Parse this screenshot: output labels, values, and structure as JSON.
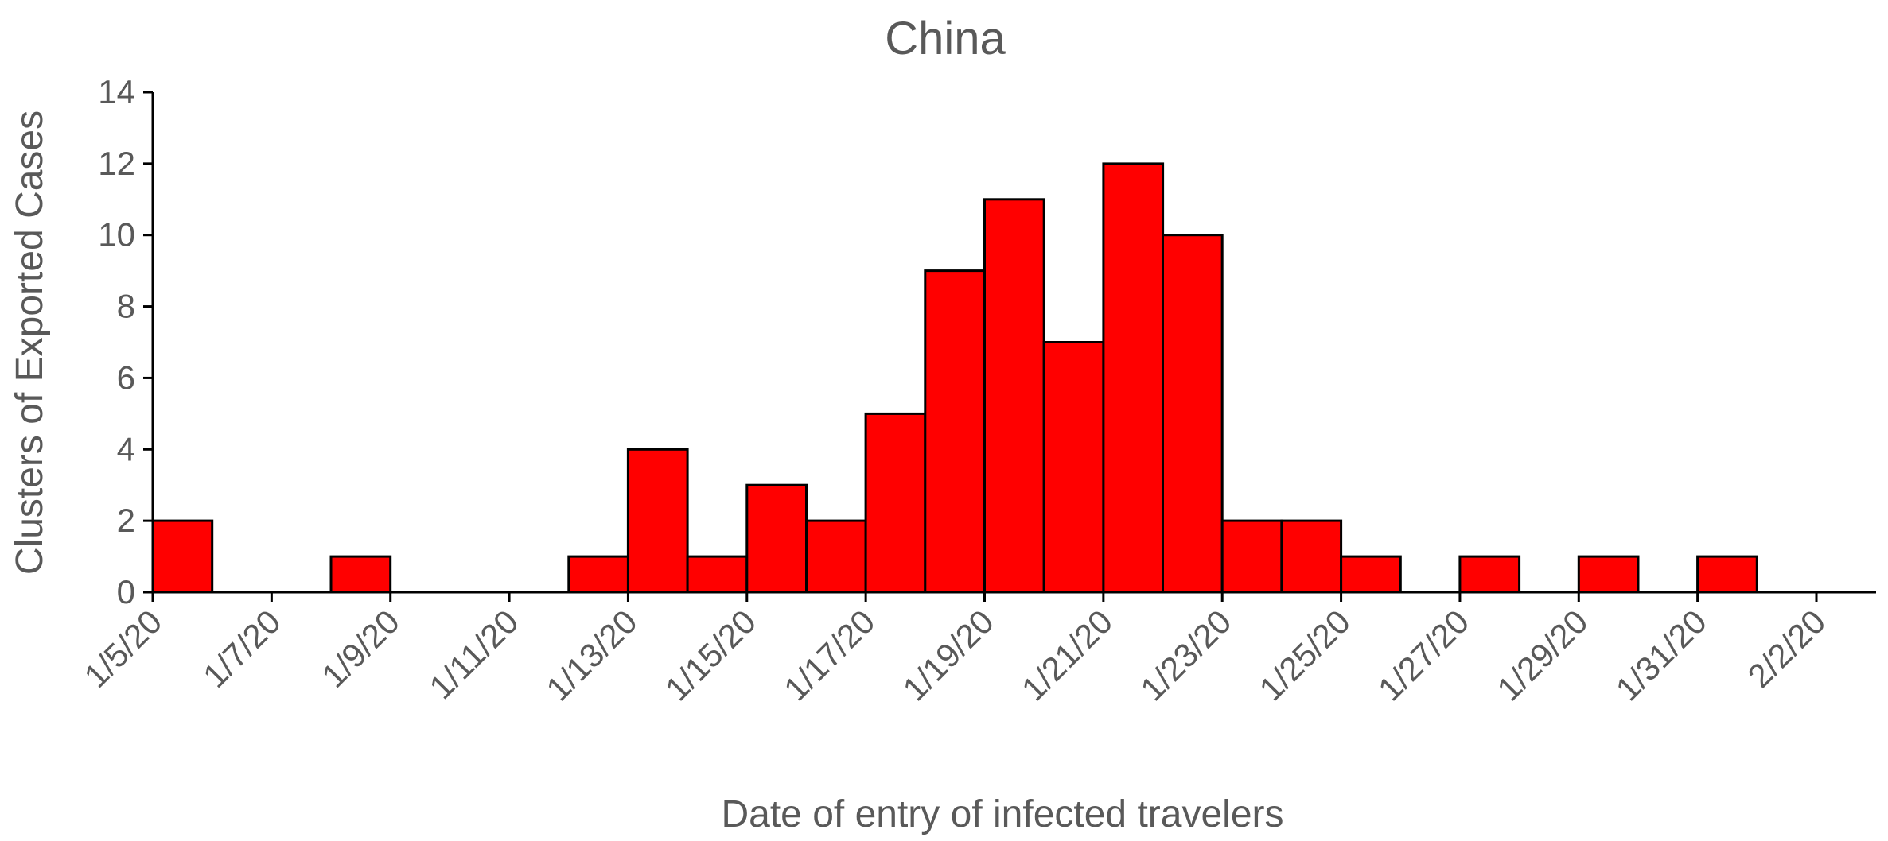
{
  "chart_data": {
    "type": "bar",
    "title": "China",
    "xlabel": "Date of entry of infected travelers",
    "ylabel": "Clusters of Exported Cases",
    "ylim": [
      0,
      14
    ],
    "yticks": [
      "0",
      "2",
      "4",
      "6",
      "8",
      "10",
      "12",
      "14"
    ],
    "xticks": [
      "1/5/20",
      "1/7/20",
      "1/9/20",
      "1/11/20",
      "1/13/20",
      "1/15/20",
      "1/17/20",
      "1/19/20",
      "1/21/20",
      "1/23/20",
      "1/25/20",
      "1/27/20",
      "1/29/20",
      "1/31/20",
      "2/2/20"
    ],
    "grid": false,
    "legend": "none",
    "bar_color": "#ff0000",
    "x_range": [
      "1/5/20",
      "2/2/20"
    ],
    "bars": [
      {
        "start": "1/5/20",
        "end": "1/5/20",
        "value": 1
      },
      {
        "start": "1/5/20",
        "end": "1/6/20",
        "value": 2
      },
      {
        "start": "1/7/20",
        "end": "1/8/20",
        "value": 0
      },
      {
        "start": "1/8/20",
        "end": "1/9/20",
        "value": 1
      },
      {
        "start": "1/9/20",
        "end": "1/10/20",
        "value": 0
      },
      {
        "start": "1/10/20",
        "end": "1/11/20",
        "value": 0
      },
      {
        "start": "1/11/20",
        "end": "1/12/20",
        "value": 0
      },
      {
        "start": "1/12/20",
        "end": "1/13/20",
        "value": 1
      },
      {
        "start": "1/13/20",
        "end": "1/14/20",
        "value": 4
      },
      {
        "start": "1/14/20",
        "end": "1/15/20",
        "value": 0
      },
      {
        "start": "1/14/20",
        "end": "1/15/20",
        "value": 1
      },
      {
        "start": "1/15/20",
        "end": "1/16/20",
        "value": 3
      },
      {
        "start": "1/16/20",
        "end": "1/17/20",
        "value": 2
      },
      {
        "start": "1/17/20",
        "end": "1/18/20",
        "value": 5
      },
      {
        "start": "1/18/20",
        "end": "1/19/20",
        "value": 9
      },
      {
        "start": "1/19/20",
        "end": "1/20/20",
        "value": 11
      },
      {
        "start": "1/20/20",
        "end": "1/21/20",
        "value": 7
      },
      {
        "start": "1/21/20",
        "end": "1/22/20",
        "value": 12
      },
      {
        "start": "1/22/20",
        "end": "1/23/20",
        "value": 10
      },
      {
        "start": "1/23/20",
        "end": "1/24/20",
        "value": 2
      },
      {
        "start": "1/24/20",
        "end": "1/25/20",
        "value": 2
      },
      {
        "start": "1/25/20",
        "end": "1/26/20",
        "value": 1
      },
      {
        "start": "1/27/20",
        "end": "1/28/20",
        "value": 1
      },
      {
        "start": "1/29/20",
        "end": "1/30/20",
        "value": 1
      },
      {
        "start": "1/31/20",
        "end": "2/1/20",
        "value": 1
      }
    ]
  }
}
